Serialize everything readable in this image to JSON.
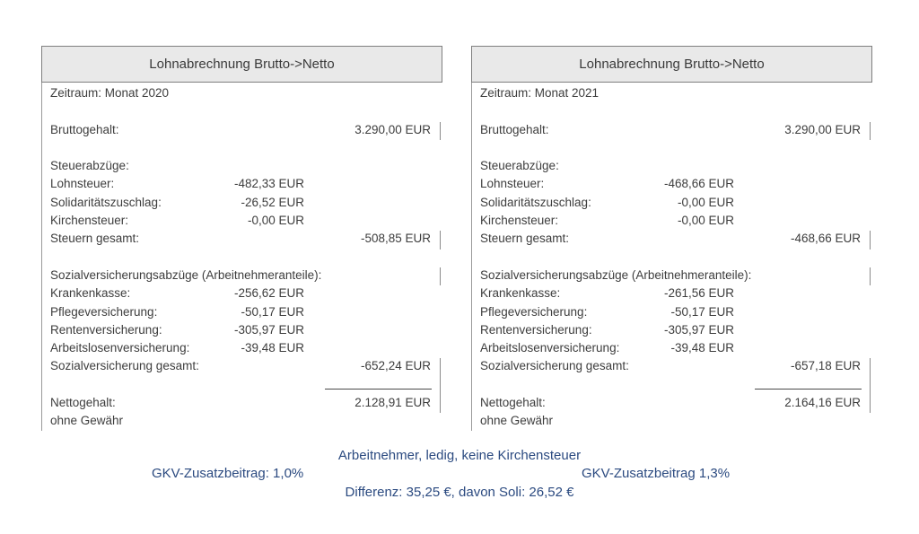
{
  "colors": {
    "accent_blue": "#2b4a80",
    "header_fill": "#e9e9e9",
    "border_gray": "#7f7f7f",
    "text_gray": "#3d3d3d"
  },
  "panels": [
    {
      "title": "Lohnabrechnung Brutto->Netto",
      "rows": [
        {
          "label": "Zeitraum: Monat 2020"
        },
        {
          "blank": true
        },
        {
          "label": "Bruttogehalt:",
          "right": "3.290,00 EUR",
          "tick": true
        },
        {
          "blank": true
        },
        {
          "label": "Steuerabzüge:"
        },
        {
          "label": "Lohnsteuer:",
          "mid": "-482,33 EUR"
        },
        {
          "label": "Solidaritätszuschlag:",
          "mid": "-26,52 EUR"
        },
        {
          "label": "Kirchensteuer:",
          "mid": "-0,00 EUR"
        },
        {
          "label": "Steuern gesamt:",
          "right": "-508,85 EUR",
          "tick": true
        },
        {
          "blank": true
        },
        {
          "label": "Sozialversicherungsabzüge (Arbeitnehmeranteile):",
          "tick": true
        },
        {
          "label": "Krankenkasse:",
          "mid": "-256,62 EUR"
        },
        {
          "label": "Pflegeversicherung:",
          "mid": "-50,17 EUR"
        },
        {
          "label": "Rentenversicherung:",
          "mid": "-305,97 EUR"
        },
        {
          "label": "Arbeitslosenversicherung:",
          "mid": "-39,48 EUR"
        },
        {
          "label": "Sozialversicherung gesamt:",
          "right": "-652,24 EUR",
          "tick": true
        },
        {
          "rule": true,
          "tick": true
        },
        {
          "label": "Nettogehalt:",
          "right": "2.128,91 EUR",
          "tick": true
        },
        {
          "label": "ohne Gewähr"
        }
      ]
    },
    {
      "title": "Lohnabrechnung Brutto->Netto",
      "rows": [
        {
          "label": "Zeitraum: Monat 2021"
        },
        {
          "blank": true
        },
        {
          "label": "Bruttogehalt:",
          "right": "3.290,00 EUR",
          "tick": true
        },
        {
          "blank": true
        },
        {
          "label": "Steuerabzüge:"
        },
        {
          "label": "Lohnsteuer:",
          "mid": "-468,66 EUR"
        },
        {
          "label": "Solidaritätszuschlag:",
          "mid": "-0,00 EUR"
        },
        {
          "label": "Kirchensteuer:",
          "mid": "-0,00 EUR"
        },
        {
          "label": "Steuern gesamt:",
          "right": "-468,66 EUR",
          "tick": true
        },
        {
          "blank": true
        },
        {
          "label": "Sozialversicherungsabzüge (Arbeitnehmeranteile):",
          "tick": true
        },
        {
          "label": "Krankenkasse:",
          "mid": "-261,56 EUR"
        },
        {
          "label": "Pflegeversicherung:",
          "mid": "-50,17 EUR"
        },
        {
          "label": "Rentenversicherung:",
          "mid": "-305,97 EUR"
        },
        {
          "label": "Arbeitslosenversicherung:",
          "mid": "-39,48 EUR"
        },
        {
          "label": "Sozialversicherung gesamt:",
          "right": "-657,18 EUR",
          "tick": true
        },
        {
          "rule": true,
          "tick": true
        },
        {
          "label": "Nettogehalt:",
          "right": "2.164,16 EUR",
          "tick": true
        },
        {
          "label": "ohne Gewähr"
        }
      ]
    }
  ],
  "footnotes": {
    "line1": "Arbeitnehmer, ledig, keine Kirchensteuer",
    "line2_left": "GKV-Zusatzbeitrag: 1,0%",
    "line2_right": "GKV-Zusatzbeitrag 1,3%",
    "line3": "Differenz: 35,25 €, davon Soli: 26,52 €"
  }
}
